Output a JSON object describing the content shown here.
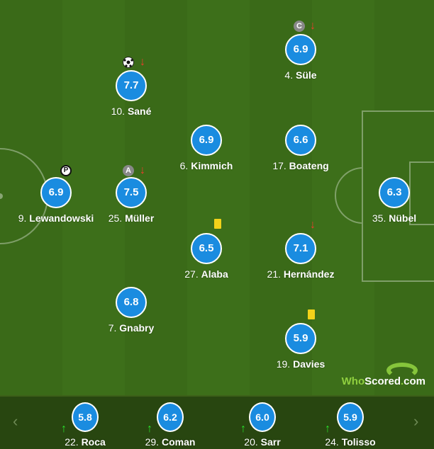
{
  "brand": {
    "who": "Who",
    "scored": "Scored",
    "dot": ".",
    "com": "com"
  },
  "colors": {
    "rating_bubble": "#1a8ce0",
    "pitch": "#3a6a18",
    "bench": "#284610",
    "sub_on": "#2be02b",
    "sub_off": "#f03c2c",
    "yellow_card": "#f2d21a"
  },
  "players": [
    {
      "num": "9.",
      "name": "Lewandowski",
      "rating": "6.9",
      "icons": [
        "penalty-icon"
      ]
    },
    {
      "num": "25.",
      "name": "Müller",
      "rating": "7.5",
      "icons": [
        "assist-icon",
        "sub-off-arrow-icon"
      ]
    },
    {
      "num": "10.",
      "name": "Sané",
      "rating": "7.7",
      "icons": [
        "goal-ball-icon",
        "sub-off-arrow-icon"
      ]
    },
    {
      "num": "7.",
      "name": "Gnabry",
      "rating": "6.8",
      "icons": []
    },
    {
      "num": "6.",
      "name": "Kimmich",
      "rating": "6.9",
      "icons": []
    },
    {
      "num": "27.",
      "name": "Alaba",
      "rating": "6.5",
      "icons": [
        "yellow-card-icon"
      ]
    },
    {
      "num": "4.",
      "name": "Süle",
      "rating": "6.9",
      "icons": [
        "captain-icon",
        "sub-off-arrow-icon"
      ]
    },
    {
      "num": "17.",
      "name": "Boateng",
      "rating": "6.6",
      "icons": []
    },
    {
      "num": "21.",
      "name": "Hernández",
      "rating": "7.1",
      "icons": [
        "sub-off-arrow-icon"
      ]
    },
    {
      "num": "19.",
      "name": "Davies",
      "rating": "5.9",
      "icons": [
        "yellow-card-icon"
      ]
    },
    {
      "num": "35.",
      "name": "Nübel",
      "rating": "6.3",
      "icons": []
    }
  ],
  "badges": {
    "assist": "A",
    "captain": "C",
    "penalty": "P",
    "arrow_down": "↓",
    "arrow_up": "↑"
  },
  "subs": [
    {
      "num": "22.",
      "name": "Roca",
      "rating": "5.8"
    },
    {
      "num": "29.",
      "name": "Coman",
      "rating": "6.2"
    },
    {
      "num": "20.",
      "name": "Sarr",
      "rating": "6.0"
    },
    {
      "num": "24.",
      "name": "Tolisso",
      "rating": "5.9"
    }
  ],
  "nav": {
    "prev": "‹",
    "next": "›"
  }
}
